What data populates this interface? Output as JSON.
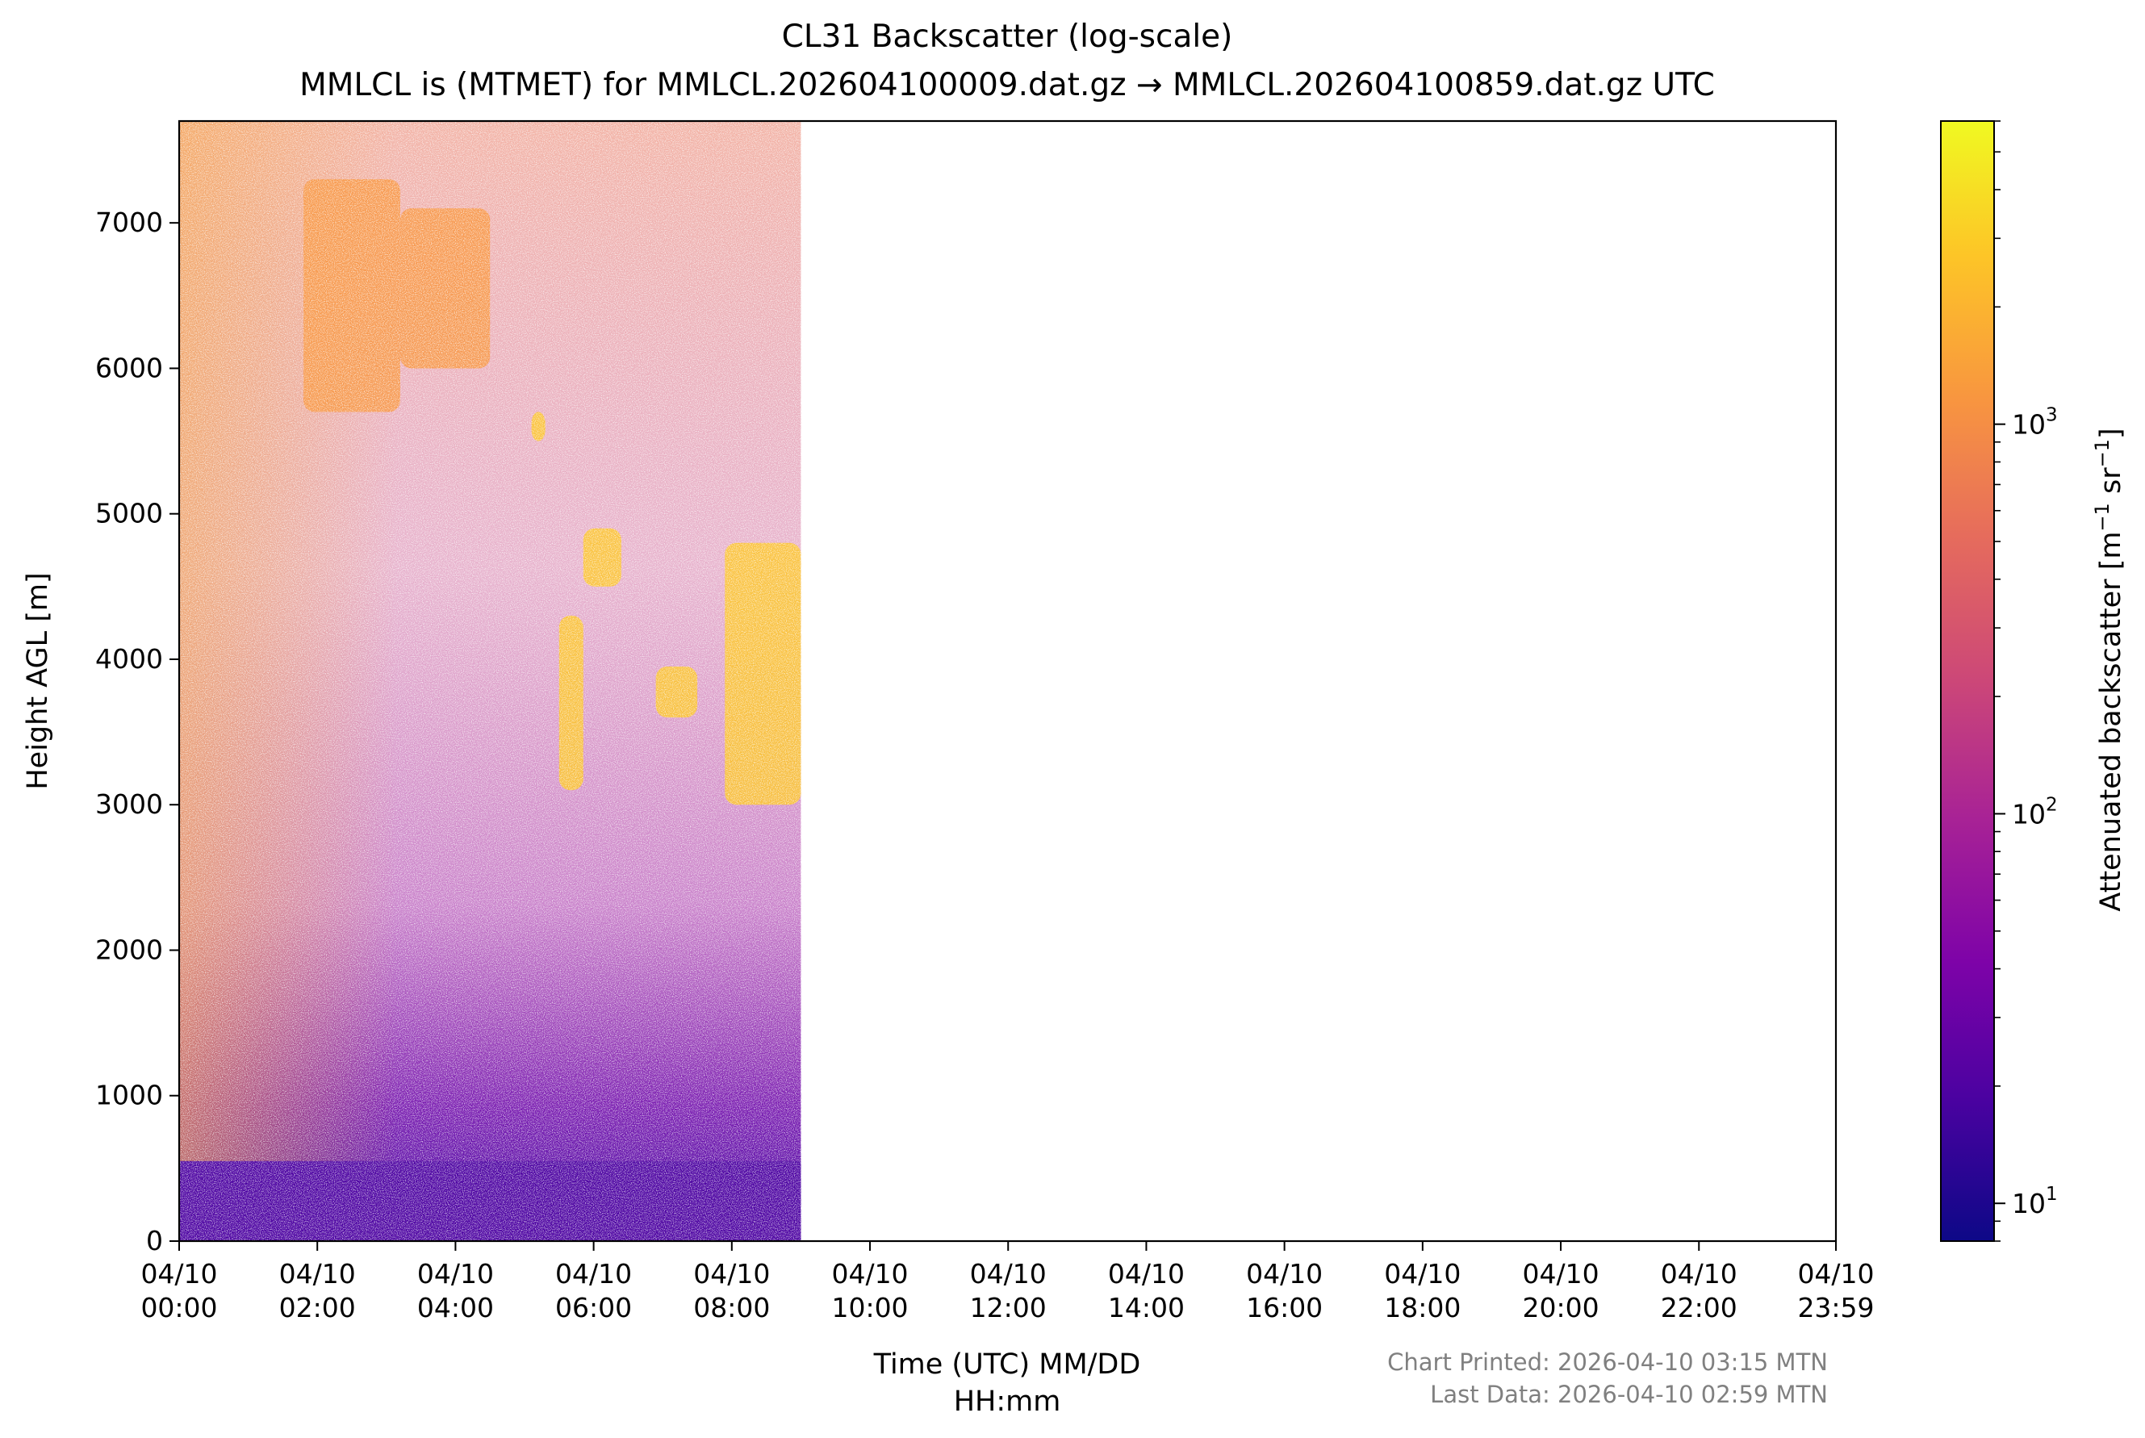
{
  "chart_data": {
    "type": "heatmap",
    "title": "CL31 Backscatter (log-scale)",
    "subtitle": "MMLCL is (MTMET) for MMLCL.202604100009.dat.gz → MMLCL.202604100859.dat.gz UTC",
    "xlabel_line1": "Time (UTC) MM/DD",
    "xlabel_line2": "HH:mm",
    "ylabel": "Height AGL [m]",
    "x_ticks": [
      {
        "date": "04/10",
        "time": "00:00",
        "hours": 0
      },
      {
        "date": "04/10",
        "time": "02:00",
        "hours": 2
      },
      {
        "date": "04/10",
        "time": "04:00",
        "hours": 4
      },
      {
        "date": "04/10",
        "time": "06:00",
        "hours": 6
      },
      {
        "date": "04/10",
        "time": "08:00",
        "hours": 8
      },
      {
        "date": "04/10",
        "time": "10:00",
        "hours": 10
      },
      {
        "date": "04/10",
        "time": "12:00",
        "hours": 12
      },
      {
        "date": "04/10",
        "time": "14:00",
        "hours": 14
      },
      {
        "date": "04/10",
        "time": "16:00",
        "hours": 16
      },
      {
        "date": "04/10",
        "time": "18:00",
        "hours": 18
      },
      {
        "date": "04/10",
        "time": "20:00",
        "hours": 20
      },
      {
        "date": "04/10",
        "time": "22:00",
        "hours": 22
      },
      {
        "date": "04/10",
        "time": "23:59",
        "hours": 23.983
      }
    ],
    "xlim_hours": [
      0,
      23.983
    ],
    "data_extent_hours": [
      0,
      9.0
    ],
    "y_ticks": [
      0,
      1000,
      2000,
      3000,
      4000,
      5000,
      6000,
      7000
    ],
    "ylim": [
      0,
      7700
    ],
    "colorbar": {
      "label_text": "Attenuated backscatter [m",
      "label_sup1": "−1",
      "label_mid": " sr",
      "label_sup2": "−1",
      "label_end": "]",
      "scale": "log",
      "range": [
        8,
        6000
      ],
      "colormap": "plasma",
      "ticks": [
        {
          "value": 10,
          "base": "10",
          "exp": "1"
        },
        {
          "value": 100,
          "base": "10",
          "exp": "2"
        },
        {
          "value": 1000,
          "base": "10",
          "exp": "3"
        }
      ]
    },
    "layers": [
      {
        "kind": "surface",
        "t_start": 0,
        "t_end": 9.0,
        "h_start": 0,
        "h_end": 550,
        "level": 18
      },
      {
        "kind": "cloud",
        "t_start": 1.8,
        "t_end": 3.2,
        "h_start": 5700,
        "h_end": 7300,
        "level": 1500
      },
      {
        "kind": "cloud",
        "t_start": 3.2,
        "t_end": 4.5,
        "h_start": 6000,
        "h_end": 7100,
        "level": 1400
      },
      {
        "kind": "cloud",
        "t_start": 5.1,
        "t_end": 5.3,
        "h_start": 5500,
        "h_end": 5700,
        "level": 3000
      },
      {
        "kind": "cloud",
        "t_start": 5.5,
        "t_end": 5.85,
        "h_start": 3100,
        "h_end": 4300,
        "level": 2800
      },
      {
        "kind": "cloud",
        "t_start": 5.85,
        "t_end": 6.4,
        "h_start": 4500,
        "h_end": 4900,
        "level": 3500
      },
      {
        "kind": "cloud",
        "t_start": 6.9,
        "t_end": 7.5,
        "h_start": 3600,
        "h_end": 3950,
        "level": 2500
      },
      {
        "kind": "cloud",
        "t_start": 7.9,
        "t_end": 9.0,
        "h_start": 3000,
        "h_end": 4800,
        "level": 3500
      }
    ]
  },
  "footer": {
    "printed": "Chart Printed: 2026-04-10 03:15 MTN",
    "last_data": "Last Data: 2026-04-10 02:59 MTN"
  },
  "colors": {
    "surface_layer": "#3a05a0",
    "cloud": "#fdb42f",
    "frame": "#000000",
    "footer_text": "#808080"
  }
}
